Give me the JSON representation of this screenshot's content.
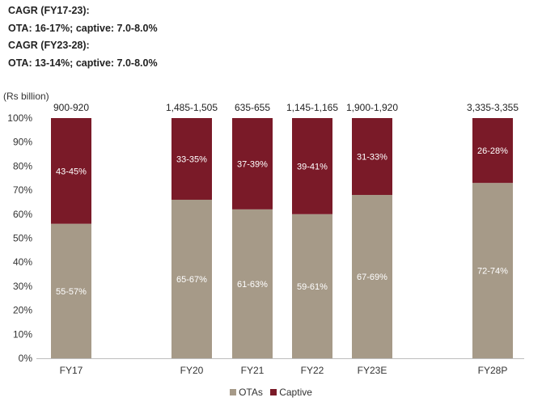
{
  "notes": [
    "CAGR (FY17-23):",
    "OTA: 16-17%; captive: 7.0-8.0%",
    "CAGR (FY23-28):",
    "OTA: 13-14%; captive: 7.0-8.0%"
  ],
  "chart_data": {
    "type": "bar",
    "stacked": true,
    "unit_label": "(Rs billion)",
    "categories": [
      "FY17",
      "FY20",
      "FY21",
      "FY22",
      "FY23E",
      "FY28P"
    ],
    "totals": [
      "900-920",
      "1,485-1,505",
      "635-655",
      "1,145-1,165",
      "1,900-1,920",
      "3,335-3,355"
    ],
    "series": [
      {
        "name": "OTAs",
        "color": "#A69A88",
        "values": [
          56,
          66,
          62,
          60,
          68,
          73
        ],
        "labels": [
          "55-57%",
          "65-67%",
          "61-63%",
          "59-61%",
          "67-69%",
          "72-74%"
        ]
      },
      {
        "name": "Captive",
        "color": "#7A1A28",
        "values": [
          44,
          34,
          38,
          40,
          32,
          27
        ],
        "labels": [
          "43-45%",
          "33-35%",
          "37-39%",
          "39-41%",
          "31-33%",
          "26-28%"
        ]
      }
    ],
    "yticks": [
      "0%",
      "10%",
      "20%",
      "30%",
      "40%",
      "50%",
      "60%",
      "70%",
      "80%",
      "90%",
      "100%"
    ],
    "ylim": [
      0,
      100
    ],
    "legend_position": "bottom",
    "grid": false
  }
}
